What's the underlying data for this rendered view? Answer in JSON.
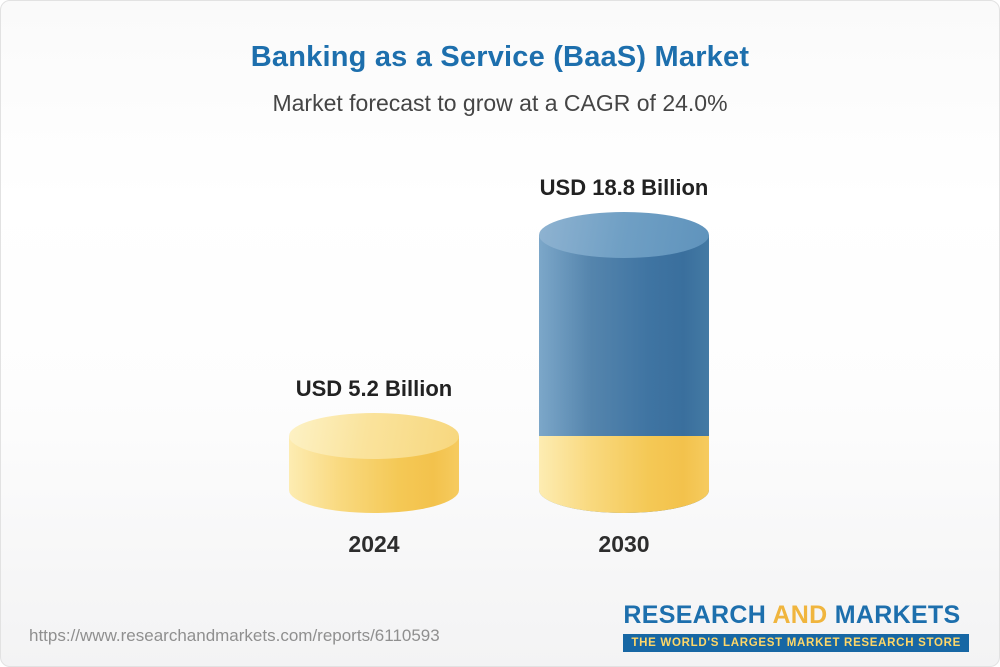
{
  "header": {
    "title": "Banking as a Service (BaaS) Market",
    "subtitle": "Market forecast to grow at a CAGR of 24.0%"
  },
  "chart_data": {
    "type": "bar",
    "style": "3d-cylinder",
    "title": "Banking as a Service (BaaS) Market",
    "subtitle": "Market forecast to grow at a CAGR of 24.0%",
    "cagr_percent": 24.0,
    "categories": [
      "2024",
      "2030"
    ],
    "values": [
      5.2,
      18.8
    ],
    "value_labels": [
      "USD 5.2 Billion",
      "USD 18.8 Billion"
    ],
    "unit": "USD Billion",
    "axes": "none",
    "legend": "none",
    "colors": {
      "bar_2024": "#f6cb5f",
      "bar_2030": "#3f74a2",
      "bar_2030_base_segment": "#f6cb5f",
      "title_text": "#1d6fad",
      "label_text": "#222222"
    }
  },
  "footer": {
    "source_url": "https://www.researchandmarkets.com/reports/6110593",
    "logo": {
      "research": "RESEARCH",
      "and": "AND",
      "markets": "MARKETS",
      "tagline": "THE WORLD'S LARGEST MARKET RESEARCH STORE"
    }
  }
}
